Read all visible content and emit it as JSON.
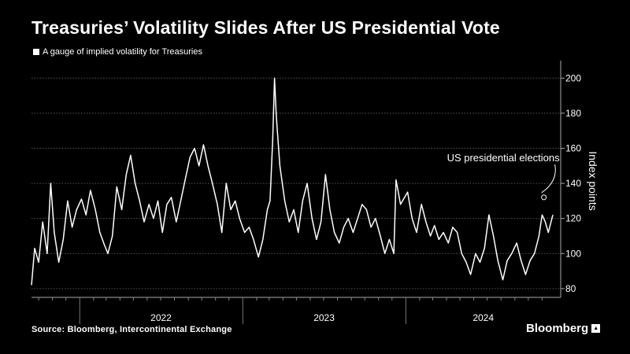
{
  "title": "Treasuries’ Volatility Slides After US Presidential Vote",
  "legend": {
    "label": "A gauge of implied volatility for Treasuries",
    "color": "#ffffff"
  },
  "source": "Source: Bloomberg, Intercontinental Exchange",
  "brand": "Bloomberg",
  "chart_data": {
    "type": "line",
    "ylabel": "Index points",
    "ylim": [
      75,
      210
    ],
    "yticks": [
      80,
      100,
      120,
      140,
      160,
      180,
      200
    ],
    "grid": true,
    "x_categories": [
      "2022",
      "2023",
      "2024"
    ],
    "x_range": [
      "2021-09-15",
      "2024-11-25"
    ],
    "series": [
      {
        "color": "#ffffff",
        "points": [
          [
            "2021-09-15",
            82
          ],
          [
            "2021-09-22",
            103
          ],
          [
            "2021-10-01",
            95
          ],
          [
            "2021-10-10",
            118
          ],
          [
            "2021-10-20",
            100
          ],
          [
            "2021-10-28",
            140
          ],
          [
            "2021-11-05",
            112
          ],
          [
            "2021-11-15",
            95
          ],
          [
            "2021-11-25",
            108
          ],
          [
            "2021-12-05",
            130
          ],
          [
            "2021-12-15",
            115
          ],
          [
            "2021-12-25",
            125
          ],
          [
            "2022-01-05",
            131
          ],
          [
            "2022-01-15",
            122
          ],
          [
            "2022-01-25",
            136
          ],
          [
            "2022-02-05",
            125
          ],
          [
            "2022-02-15",
            112
          ],
          [
            "2022-02-25",
            105
          ],
          [
            "2022-03-05",
            100
          ],
          [
            "2022-03-15",
            110
          ],
          [
            "2022-03-25",
            138
          ],
          [
            "2022-04-05",
            125
          ],
          [
            "2022-04-15",
            145
          ],
          [
            "2022-04-25",
            156
          ],
          [
            "2022-05-05",
            140
          ],
          [
            "2022-05-15",
            130
          ],
          [
            "2022-05-25",
            118
          ],
          [
            "2022-06-05",
            128
          ],
          [
            "2022-06-15",
            120
          ],
          [
            "2022-06-25",
            130
          ],
          [
            "2022-07-05",
            112
          ],
          [
            "2022-07-15",
            128
          ],
          [
            "2022-07-25",
            132
          ],
          [
            "2022-08-05",
            118
          ],
          [
            "2022-08-15",
            130
          ],
          [
            "2022-08-25",
            142
          ],
          [
            "2022-09-05",
            155
          ],
          [
            "2022-09-15",
            160
          ],
          [
            "2022-09-25",
            150
          ],
          [
            "2022-10-05",
            162
          ],
          [
            "2022-10-15",
            150
          ],
          [
            "2022-10-25",
            140
          ],
          [
            "2022-11-05",
            128
          ],
          [
            "2022-11-15",
            112
          ],
          [
            "2022-11-25",
            140
          ],
          [
            "2022-12-05",
            125
          ],
          [
            "2022-12-15",
            130
          ],
          [
            "2022-12-25",
            120
          ],
          [
            "2023-01-05",
            112
          ],
          [
            "2023-01-15",
            115
          ],
          [
            "2023-01-25",
            108
          ],
          [
            "2023-02-05",
            98
          ],
          [
            "2023-02-15",
            108
          ],
          [
            "2023-02-25",
            125
          ],
          [
            "2023-03-03",
            130
          ],
          [
            "2023-03-09",
            165
          ],
          [
            "2023-03-13",
            200
          ],
          [
            "2023-03-17",
            178
          ],
          [
            "2023-03-25",
            150
          ],
          [
            "2023-04-05",
            130
          ],
          [
            "2023-04-15",
            118
          ],
          [
            "2023-04-25",
            125
          ],
          [
            "2023-05-05",
            112
          ],
          [
            "2023-05-15",
            130
          ],
          [
            "2023-05-25",
            140
          ],
          [
            "2023-06-05",
            120
          ],
          [
            "2023-06-15",
            108
          ],
          [
            "2023-06-25",
            118
          ],
          [
            "2023-07-05",
            145
          ],
          [
            "2023-07-15",
            125
          ],
          [
            "2023-07-25",
            112
          ],
          [
            "2023-08-05",
            106
          ],
          [
            "2023-08-15",
            115
          ],
          [
            "2023-08-25",
            120
          ],
          [
            "2023-09-05",
            112
          ],
          [
            "2023-09-15",
            120
          ],
          [
            "2023-09-25",
            128
          ],
          [
            "2023-10-05",
            125
          ],
          [
            "2023-10-15",
            115
          ],
          [
            "2023-10-25",
            120
          ],
          [
            "2023-11-05",
            110
          ],
          [
            "2023-11-15",
            100
          ],
          [
            "2023-11-25",
            108
          ],
          [
            "2023-12-05",
            100
          ],
          [
            "2023-12-10",
            142
          ],
          [
            "2023-12-20",
            128
          ],
          [
            "2024-01-05",
            135
          ],
          [
            "2024-01-15",
            120
          ],
          [
            "2024-01-25",
            112
          ],
          [
            "2024-02-05",
            128
          ],
          [
            "2024-02-15",
            118
          ],
          [
            "2024-02-25",
            110
          ],
          [
            "2024-03-05",
            116
          ],
          [
            "2024-03-15",
            108
          ],
          [
            "2024-03-25",
            112
          ],
          [
            "2024-04-05",
            106
          ],
          [
            "2024-04-15",
            115
          ],
          [
            "2024-04-25",
            112
          ],
          [
            "2024-05-05",
            100
          ],
          [
            "2024-05-15",
            95
          ],
          [
            "2024-05-25",
            88
          ],
          [
            "2024-06-05",
            100
          ],
          [
            "2024-06-15",
            95
          ],
          [
            "2024-06-25",
            103
          ],
          [
            "2024-07-05",
            122
          ],
          [
            "2024-07-15",
            110
          ],
          [
            "2024-07-25",
            96
          ],
          [
            "2024-08-05",
            85
          ],
          [
            "2024-08-15",
            96
          ],
          [
            "2024-08-25",
            100
          ],
          [
            "2024-09-05",
            106
          ],
          [
            "2024-09-15",
            96
          ],
          [
            "2024-09-25",
            88
          ],
          [
            "2024-10-05",
            96
          ],
          [
            "2024-10-15",
            100
          ],
          [
            "2024-10-25",
            110
          ],
          [
            "2024-11-01",
            122
          ],
          [
            "2024-11-08",
            118
          ],
          [
            "2024-11-15",
            112
          ],
          [
            "2024-11-25",
            122
          ]
        ]
      }
    ],
    "annotation": {
      "text": "US presidential elections",
      "x": "2024-11-05",
      "y": 132
    }
  }
}
